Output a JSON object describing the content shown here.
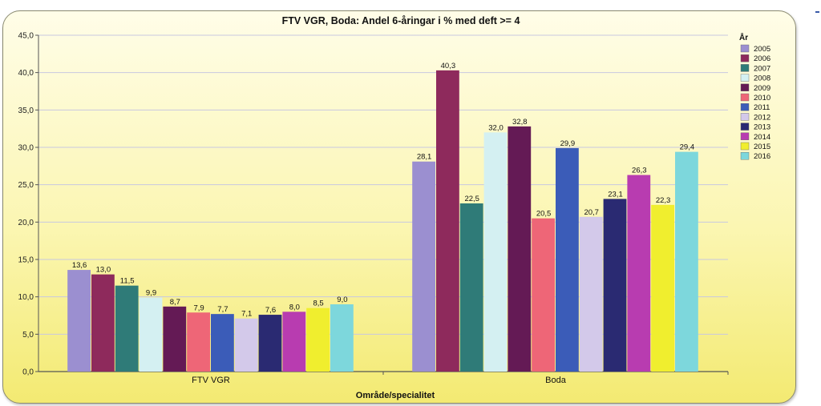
{
  "chart_data": {
    "type": "bar",
    "title": "FTV VGR, Boda: Andel 6-åringar i % med deft >= 4",
    "xlabel": "Område/specialitet",
    "ylabel": "",
    "ylim": [
      0,
      45
    ],
    "yticks": [
      "0,0",
      "5,0",
      "10,0",
      "15,0",
      "20,0",
      "25,0",
      "30,0",
      "35,0",
      "40,0",
      "45,0"
    ],
    "grid": true,
    "legend_title": "År",
    "legend_position": "right",
    "categories": [
      "FTV VGR",
      "Boda"
    ],
    "series": [
      {
        "name": "2005",
        "color": "#9b8fd0",
        "values": [
          13.6,
          28.1
        ],
        "labels": [
          "13,6",
          "28,1"
        ]
      },
      {
        "name": "2006",
        "color": "#8e2a5c",
        "values": [
          13.0,
          40.3
        ],
        "labels": [
          "13,0",
          "40,3"
        ]
      },
      {
        "name": "2007",
        "color": "#2f7b78",
        "values": [
          11.5,
          22.5
        ],
        "labels": [
          "11,5",
          "22,5"
        ]
      },
      {
        "name": "2008",
        "color": "#d4f0f2",
        "values": [
          9.9,
          32.0
        ],
        "labels": [
          "9,9",
          "32,0"
        ]
      },
      {
        "name": "2009",
        "color": "#641a55",
        "values": [
          8.7,
          32.8
        ],
        "labels": [
          "8,7",
          "32,8"
        ]
      },
      {
        "name": "2010",
        "color": "#ee6677",
        "values": [
          7.9,
          20.5
        ],
        "labels": [
          "7,9",
          "20,5"
        ]
      },
      {
        "name": "2011",
        "color": "#3b5cb8",
        "values": [
          7.7,
          29.9
        ],
        "labels": [
          "7,7",
          "29,9"
        ]
      },
      {
        "name": "2012",
        "color": "#d3c9ea",
        "values": [
          7.1,
          20.7
        ],
        "labels": [
          "7,1",
          "20,7"
        ]
      },
      {
        "name": "2013",
        "color": "#2a2a72",
        "values": [
          7.6,
          23.1
        ],
        "labels": [
          "7,6",
          "23,1"
        ]
      },
      {
        "name": "2014",
        "color": "#b83cb0",
        "values": [
          8.0,
          26.3
        ],
        "labels": [
          "8,0",
          "26,3"
        ]
      },
      {
        "name": "2015",
        "color": "#f0ee2e",
        "values": [
          8.5,
          22.3
        ],
        "labels": [
          "8,5",
          "22,3"
        ]
      },
      {
        "name": "2016",
        "color": "#7dd7dc",
        "values": [
          9.0,
          29.4
        ],
        "labels": [
          "9,0",
          "29,4"
        ]
      }
    ]
  }
}
